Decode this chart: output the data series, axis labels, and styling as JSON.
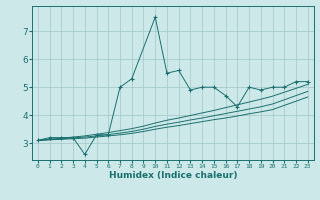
{
  "xlabel": "Humidex (Indice chaleur)",
  "background_color": "#cde8e8",
  "grid_color": "#a8cccc",
  "line_color": "#1a7070",
  "xlim": [
    -0.5,
    23.5
  ],
  "ylim": [
    2.4,
    7.9
  ],
  "yticks": [
    3,
    4,
    5,
    6,
    7
  ],
  "xticks": [
    0,
    1,
    2,
    3,
    4,
    5,
    6,
    7,
    8,
    9,
    10,
    11,
    12,
    13,
    14,
    15,
    16,
    17,
    18,
    19,
    20,
    21,
    22,
    23
  ],
  "series": {
    "jagged": {
      "x": [
        0,
        1,
        2,
        3,
        4,
        5,
        6,
        7,
        8,
        10,
        11,
        12,
        13,
        14,
        15,
        16,
        17,
        18,
        19,
        20,
        21,
        22,
        23
      ],
      "y": [
        3.1,
        3.2,
        3.2,
        3.2,
        2.6,
        3.3,
        3.3,
        5.0,
        5.3,
        7.5,
        5.5,
        5.6,
        4.9,
        5.0,
        5.0,
        4.7,
        4.3,
        5.0,
        4.9,
        5.0,
        5.0,
        5.2,
        5.2
      ]
    },
    "line1": {
      "x": [
        0,
        1,
        2,
        3,
        4,
        5,
        6,
        7,
        8,
        9,
        10,
        11,
        12,
        13,
        14,
        15,
        16,
        17,
        18,
        19,
        20,
        21,
        22,
        23
      ],
      "y": [
        3.1,
        3.12,
        3.14,
        3.16,
        3.18,
        3.22,
        3.26,
        3.3,
        3.35,
        3.42,
        3.5,
        3.57,
        3.63,
        3.7,
        3.77,
        3.84,
        3.9,
        3.97,
        4.05,
        4.12,
        4.2,
        4.35,
        4.5,
        4.65
      ]
    },
    "line2": {
      "x": [
        0,
        1,
        2,
        3,
        4,
        5,
        6,
        7,
        8,
        9,
        10,
        11,
        12,
        13,
        14,
        15,
        16,
        17,
        18,
        19,
        20,
        21,
        22,
        23
      ],
      "y": [
        3.1,
        3.13,
        3.16,
        3.19,
        3.22,
        3.26,
        3.31,
        3.36,
        3.42,
        3.5,
        3.6,
        3.68,
        3.75,
        3.83,
        3.9,
        3.98,
        4.06,
        4.14,
        4.22,
        4.3,
        4.4,
        4.55,
        4.7,
        4.85
      ]
    },
    "line3": {
      "x": [
        0,
        1,
        2,
        3,
        4,
        5,
        6,
        7,
        8,
        9,
        10,
        11,
        12,
        13,
        14,
        15,
        16,
        17,
        18,
        19,
        20,
        21,
        22,
        23
      ],
      "y": [
        3.1,
        3.14,
        3.18,
        3.22,
        3.26,
        3.32,
        3.38,
        3.45,
        3.52,
        3.61,
        3.72,
        3.82,
        3.9,
        3.99,
        4.08,
        4.17,
        4.27,
        4.37,
        4.47,
        4.57,
        4.68,
        4.82,
        4.96,
        5.1
      ]
    }
  }
}
